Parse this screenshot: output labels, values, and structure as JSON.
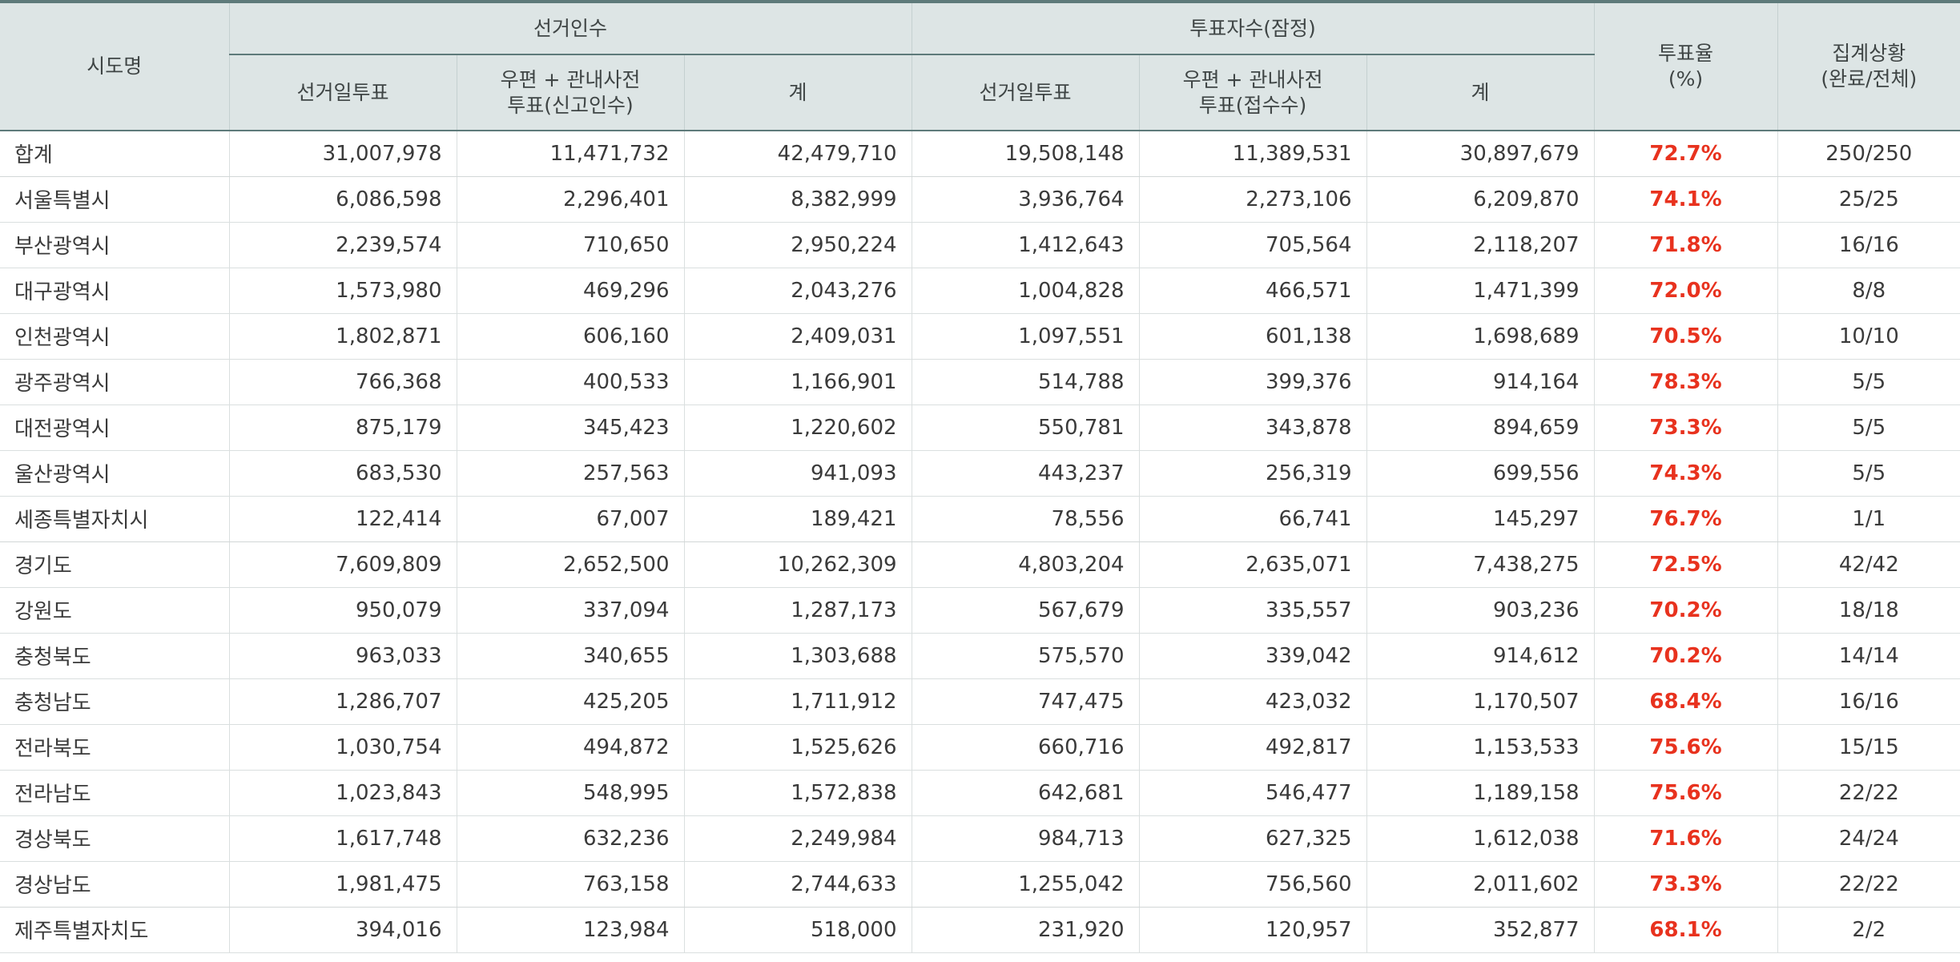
{
  "table": {
    "headers": {
      "region": "시도명",
      "eligible_group": "선거인수",
      "voters_group": "투표자수(잠정)",
      "eligible_day": "선거일투표",
      "eligible_mail_line1": "우편 + 관내사전",
      "eligible_mail_line2": "투표(신고인수)",
      "eligible_total": "계",
      "voters_day": "선거일투표",
      "voters_mail_line1": "우편 + 관내사전",
      "voters_mail_line2": "투표(접수수)",
      "voters_total": "계",
      "rate_line1": "투표율",
      "rate_line2": "(%)",
      "status_line1": "집계상황",
      "status_line2": "(완료/전체)"
    },
    "accent_color": "#e8321e",
    "rows": [
      {
        "region": "합계",
        "e_day": "31,007,978",
        "e_mail": "11,471,732",
        "e_total": "42,479,710",
        "v_day": "19,508,148",
        "v_mail": "11,389,531",
        "v_total": "30,897,679",
        "rate": "72.7%",
        "status": "250/250"
      },
      {
        "region": "서울특별시",
        "e_day": "6,086,598",
        "e_mail": "2,296,401",
        "e_total": "8,382,999",
        "v_day": "3,936,764",
        "v_mail": "2,273,106",
        "v_total": "6,209,870",
        "rate": "74.1%",
        "status": "25/25"
      },
      {
        "region": "부산광역시",
        "e_day": "2,239,574",
        "e_mail": "710,650",
        "e_total": "2,950,224",
        "v_day": "1,412,643",
        "v_mail": "705,564",
        "v_total": "2,118,207",
        "rate": "71.8%",
        "status": "16/16"
      },
      {
        "region": "대구광역시",
        "e_day": "1,573,980",
        "e_mail": "469,296",
        "e_total": "2,043,276",
        "v_day": "1,004,828",
        "v_mail": "466,571",
        "v_total": "1,471,399",
        "rate": "72.0%",
        "status": "8/8"
      },
      {
        "region": "인천광역시",
        "e_day": "1,802,871",
        "e_mail": "606,160",
        "e_total": "2,409,031",
        "v_day": "1,097,551",
        "v_mail": "601,138",
        "v_total": "1,698,689",
        "rate": "70.5%",
        "status": "10/10"
      },
      {
        "region": "광주광역시",
        "e_day": "766,368",
        "e_mail": "400,533",
        "e_total": "1,166,901",
        "v_day": "514,788",
        "v_mail": "399,376",
        "v_total": "914,164",
        "rate": "78.3%",
        "status": "5/5"
      },
      {
        "region": "대전광역시",
        "e_day": "875,179",
        "e_mail": "345,423",
        "e_total": "1,220,602",
        "v_day": "550,781",
        "v_mail": "343,878",
        "v_total": "894,659",
        "rate": "73.3%",
        "status": "5/5"
      },
      {
        "region": "울산광역시",
        "e_day": "683,530",
        "e_mail": "257,563",
        "e_total": "941,093",
        "v_day": "443,237",
        "v_mail": "256,319",
        "v_total": "699,556",
        "rate": "74.3%",
        "status": "5/5"
      },
      {
        "region": "세종특별자치시",
        "e_day": "122,414",
        "e_mail": "67,007",
        "e_total": "189,421",
        "v_day": "78,556",
        "v_mail": "66,741",
        "v_total": "145,297",
        "rate": "76.7%",
        "status": "1/1"
      },
      {
        "region": "경기도",
        "e_day": "7,609,809",
        "e_mail": "2,652,500",
        "e_total": "10,262,309",
        "v_day": "4,803,204",
        "v_mail": "2,635,071",
        "v_total": "7,438,275",
        "rate": "72.5%",
        "status": "42/42"
      },
      {
        "region": "강원도",
        "e_day": "950,079",
        "e_mail": "337,094",
        "e_total": "1,287,173",
        "v_day": "567,679",
        "v_mail": "335,557",
        "v_total": "903,236",
        "rate": "70.2%",
        "status": "18/18"
      },
      {
        "region": "충청북도",
        "e_day": "963,033",
        "e_mail": "340,655",
        "e_total": "1,303,688",
        "v_day": "575,570",
        "v_mail": "339,042",
        "v_total": "914,612",
        "rate": "70.2%",
        "status": "14/14"
      },
      {
        "region": "충청남도",
        "e_day": "1,286,707",
        "e_mail": "425,205",
        "e_total": "1,711,912",
        "v_day": "747,475",
        "v_mail": "423,032",
        "v_total": "1,170,507",
        "rate": "68.4%",
        "status": "16/16"
      },
      {
        "region": "전라북도",
        "e_day": "1,030,754",
        "e_mail": "494,872",
        "e_total": "1,525,626",
        "v_day": "660,716",
        "v_mail": "492,817",
        "v_total": "1,153,533",
        "rate": "75.6%",
        "status": "15/15"
      },
      {
        "region": "전라남도",
        "e_day": "1,023,843",
        "e_mail": "548,995",
        "e_total": "1,572,838",
        "v_day": "642,681",
        "v_mail": "546,477",
        "v_total": "1,189,158",
        "rate": "75.6%",
        "status": "22/22"
      },
      {
        "region": "경상북도",
        "e_day": "1,617,748",
        "e_mail": "632,236",
        "e_total": "2,249,984",
        "v_day": "984,713",
        "v_mail": "627,325",
        "v_total": "1,612,038",
        "rate": "71.6%",
        "status": "24/24"
      },
      {
        "region": "경상남도",
        "e_day": "1,981,475",
        "e_mail": "763,158",
        "e_total": "2,744,633",
        "v_day": "1,255,042",
        "v_mail": "756,560",
        "v_total": "2,011,602",
        "rate": "73.3%",
        "status": "22/22"
      },
      {
        "region": "제주특별자치도",
        "e_day": "394,016",
        "e_mail": "123,984",
        "e_total": "518,000",
        "v_day": "231,920",
        "v_mail": "120,957",
        "v_total": "352,877",
        "rate": "68.1%",
        "status": "2/2"
      }
    ]
  }
}
